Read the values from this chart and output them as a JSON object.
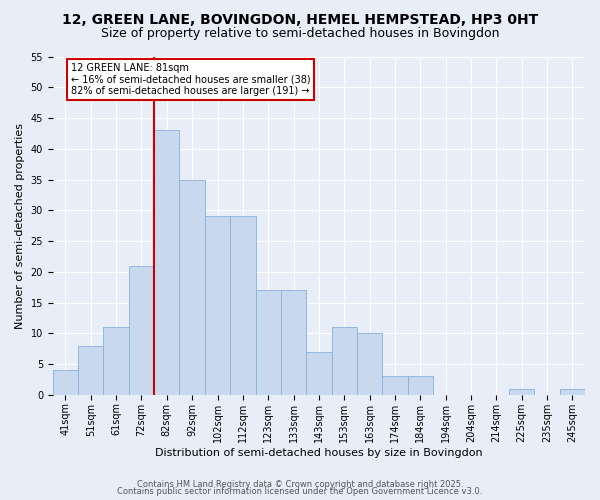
{
  "title_line1": "12, GREEN LANE, BOVINGDON, HEMEL HEMPSTEAD, HP3 0HT",
  "title_line2": "Size of property relative to semi-detached houses in Bovingdon",
  "xlabel": "Distribution of semi-detached houses by size in Bovingdon",
  "ylabel": "Number of semi-detached properties",
  "footer_line1": "Contains HM Land Registry data © Crown copyright and database right 2025.",
  "footer_line2": "Contains public sector information licensed under the Open Government Licence v3.0.",
  "bin_labels": [
    "41sqm",
    "51sqm",
    "61sqm",
    "72sqm",
    "82sqm",
    "92sqm",
    "102sqm",
    "112sqm",
    "123sqm",
    "133sqm",
    "143sqm",
    "153sqm",
    "163sqm",
    "174sqm",
    "184sqm",
    "194sqm",
    "204sqm",
    "214sqm",
    "225sqm",
    "235sqm",
    "245sqm"
  ],
  "bar_values": [
    4,
    8,
    11,
    21,
    43,
    35,
    29,
    29,
    17,
    17,
    7,
    11,
    10,
    3,
    3,
    0,
    0,
    0,
    1,
    0,
    1
  ],
  "bar_color": "#c8d9ef",
  "bar_edge_color": "#8ab0d8",
  "vline_x_index": 4,
  "vline_color": "#cc0000",
  "annotation_title": "12 GREEN LANE: 81sqm",
  "annotation_line2": "← 16% of semi-detached houses are smaller (38)",
  "annotation_line3": "82% of semi-detached houses are larger (191) →",
  "annotation_box_color": "#ffffff",
  "annotation_border_color": "#cc0000",
  "ylim": [
    0,
    55
  ],
  "yticks": [
    0,
    5,
    10,
    15,
    20,
    25,
    30,
    35,
    40,
    45,
    50,
    55
  ],
  "background_color": "#e8eef8",
  "plot_background_color": "#e8eef8",
  "grid_color": "#ffffff",
  "title_fontsize": 10,
  "subtitle_fontsize": 9,
  "xlabel_fontsize": 8,
  "ylabel_fontsize": 8,
  "tick_fontsize": 7,
  "footer_fontsize": 6
}
